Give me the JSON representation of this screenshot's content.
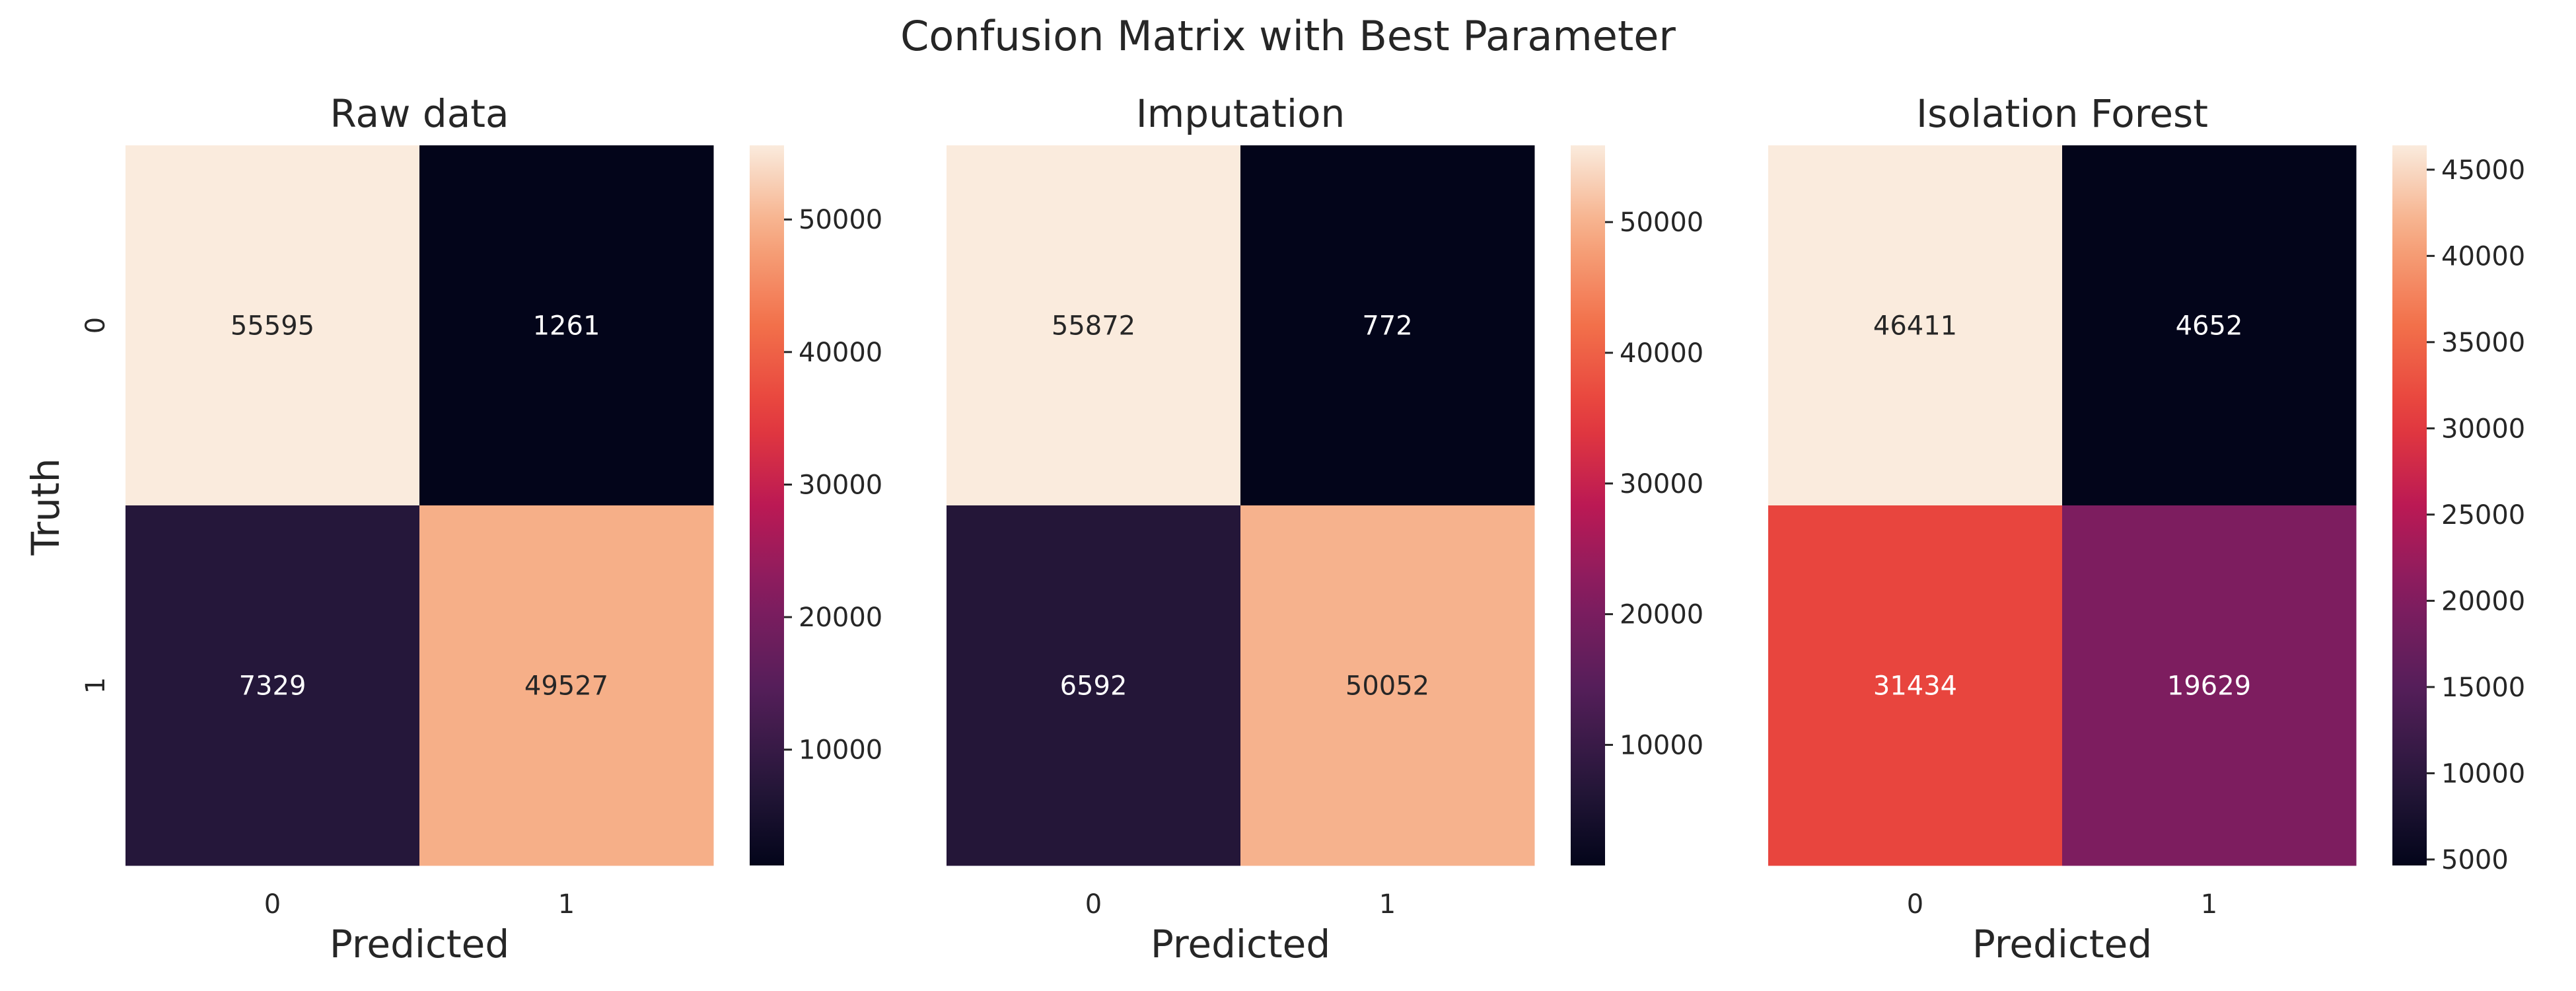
{
  "title": "Confusion Matrix with Best Parameter",
  "chart_data": [
    {
      "type": "heatmap",
      "title": "Raw data",
      "xlabel": "Predicted",
      "ylabel": "Truth",
      "x_categories": [
        "0",
        "1"
      ],
      "y_categories": [
        "0",
        "1"
      ],
      "values": [
        [
          55595,
          1261
        ],
        [
          7329,
          49527
        ]
      ],
      "colorbar": {
        "range": [
          1261,
          55595
        ],
        "ticks": [
          "10000",
          "20000",
          "30000",
          "40000",
          "50000"
        ]
      },
      "colormap": "rocket"
    },
    {
      "type": "heatmap",
      "title": "Imputation",
      "xlabel": "Predicted",
      "ylabel": "",
      "x_categories": [
        "0",
        "1"
      ],
      "y_categories": [
        "0",
        "1"
      ],
      "values": [
        [
          55872,
          772
        ],
        [
          6592,
          50052
        ]
      ],
      "colorbar": {
        "range": [
          772,
          55872
        ],
        "ticks": [
          "10000",
          "20000",
          "30000",
          "40000",
          "50000"
        ]
      },
      "colormap": "rocket"
    },
    {
      "type": "heatmap",
      "title": "Isolation Forest",
      "xlabel": "Predicted",
      "ylabel": "",
      "x_categories": [
        "0",
        "1"
      ],
      "y_categories": [
        "0",
        "1"
      ],
      "values": [
        [
          46411,
          4652
        ],
        [
          31434,
          19629
        ]
      ],
      "colorbar": {
        "range": [
          4652,
          46411
        ],
        "ticks": [
          "5000",
          "10000",
          "15000",
          "20000",
          "25000",
          "30000",
          "35000",
          "40000",
          "45000"
        ]
      },
      "colormap": "rocket"
    }
  ]
}
